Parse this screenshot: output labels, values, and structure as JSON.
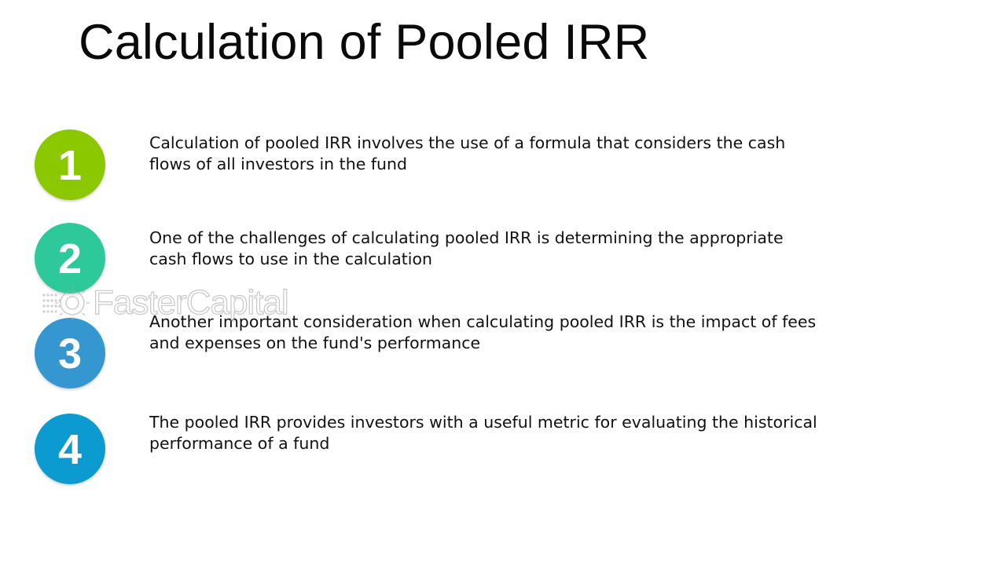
{
  "slide": {
    "title": "Calculation of Pooled IRR"
  },
  "points": [
    {
      "number": "1",
      "color": "#8cc800",
      "text": "Calculation of pooled IRR involves the use of a formula that considers the cash flows of all investors in the fund"
    },
    {
      "number": "2",
      "color": "#2ec99a",
      "text": "One of the challenges of calculating pooled IRR is determining the appropriate cash flows to use in the calculation"
    },
    {
      "number": "3",
      "color": "#3497d0",
      "text": "Another important consideration when calculating pooled IRR is the impact of fees and expenses on the fund's performance"
    },
    {
      "number": "4",
      "color": "#0c9bd0",
      "text": "The pooled IRR provides investors with a useful metric for evaluating the historical performance of a fund"
    }
  ],
  "watermark": {
    "text": "FasterCapital",
    "icon": "gear-dots-icon"
  }
}
